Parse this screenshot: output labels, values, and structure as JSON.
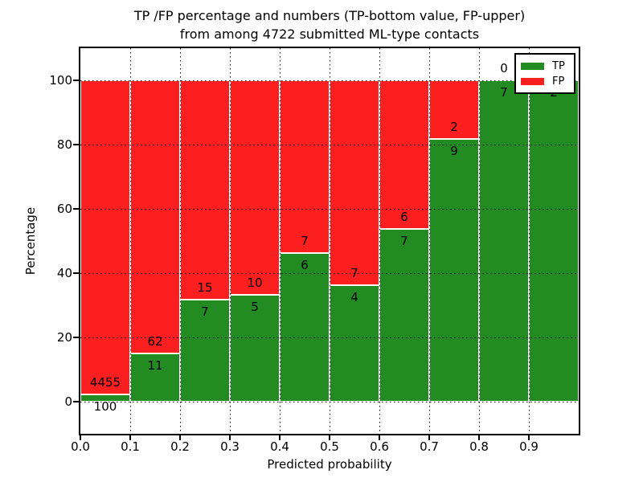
{
  "title": {
    "line1": "TP /FP percentage and numbers (TP-bottom value, FP-upper)",
    "line2": "from among 4722 submitted ML-type contacts"
  },
  "axes": {
    "xlabel": "Predicted probability",
    "ylabel": "Percentage",
    "xtick_labels": [
      "0.0",
      "0.1",
      "0.2",
      "0.3",
      "0.4",
      "0.5",
      "0.6",
      "0.7",
      "0.8",
      "0.9"
    ],
    "ytick_labels": [
      "0",
      "20",
      "40",
      "60",
      "80",
      "100"
    ]
  },
  "legend": {
    "items": [
      {
        "label": "TP",
        "color": "#228b22"
      },
      {
        "label": "FP",
        "color": "#fb1f1f"
      }
    ]
  },
  "chart_data": {
    "type": "bar",
    "stacked": true,
    "normalized_to_percent": true,
    "title": "TP /FP percentage and numbers (TP-bottom value, FP-upper) from among 4722 submitted ML-type contacts",
    "xlabel": "Predicted probability",
    "ylabel": "Percentage",
    "total_contacts": 4722,
    "bin_edges": [
      0.0,
      0.1,
      0.2,
      0.3,
      0.4,
      0.5,
      0.6,
      0.7,
      0.8,
      0.9,
      1.0
    ],
    "categories": [
      "0.0-0.1",
      "0.1-0.2",
      "0.2-0.3",
      "0.3-0.4",
      "0.4-0.5",
      "0.5-0.6",
      "0.6-0.7",
      "0.7-0.8",
      "0.8-0.9",
      "0.9-1.0"
    ],
    "series": [
      {
        "name": "TP",
        "color": "#228b22",
        "counts": [
          100,
          11,
          7,
          5,
          6,
          4,
          7,
          9,
          7,
          2
        ],
        "percentages": [
          2.2,
          15.1,
          31.8,
          33.3,
          46.2,
          36.4,
          53.8,
          81.8,
          100.0,
          100.0
        ]
      },
      {
        "name": "FP",
        "color": "#fb1f1f",
        "counts": [
          4455,
          62,
          15,
          10,
          7,
          7,
          6,
          2,
          0,
          0
        ],
        "percentages": [
          97.8,
          84.9,
          68.2,
          66.7,
          53.8,
          63.6,
          46.2,
          18.2,
          0.0,
          0.0
        ]
      }
    ],
    "label_note": "TP count printed below segment boundary, FP count printed above it",
    "xlim": [
      0.0,
      1.0
    ],
    "ylim": [
      -10,
      110
    ],
    "xticks": [
      0.0,
      0.1,
      0.2,
      0.3,
      0.4,
      0.5,
      0.6,
      0.7,
      0.8,
      0.9
    ],
    "yticks": [
      0,
      20,
      40,
      60,
      80,
      100
    ],
    "grid": "dotted black, both axes",
    "legend_position": "upper right"
  },
  "colors": {
    "tp_green": "#228b22",
    "fp_red": "#fb1f1f",
    "background": "#ffffff",
    "grid": "#000000",
    "bar_edge": "#ffffff"
  }
}
